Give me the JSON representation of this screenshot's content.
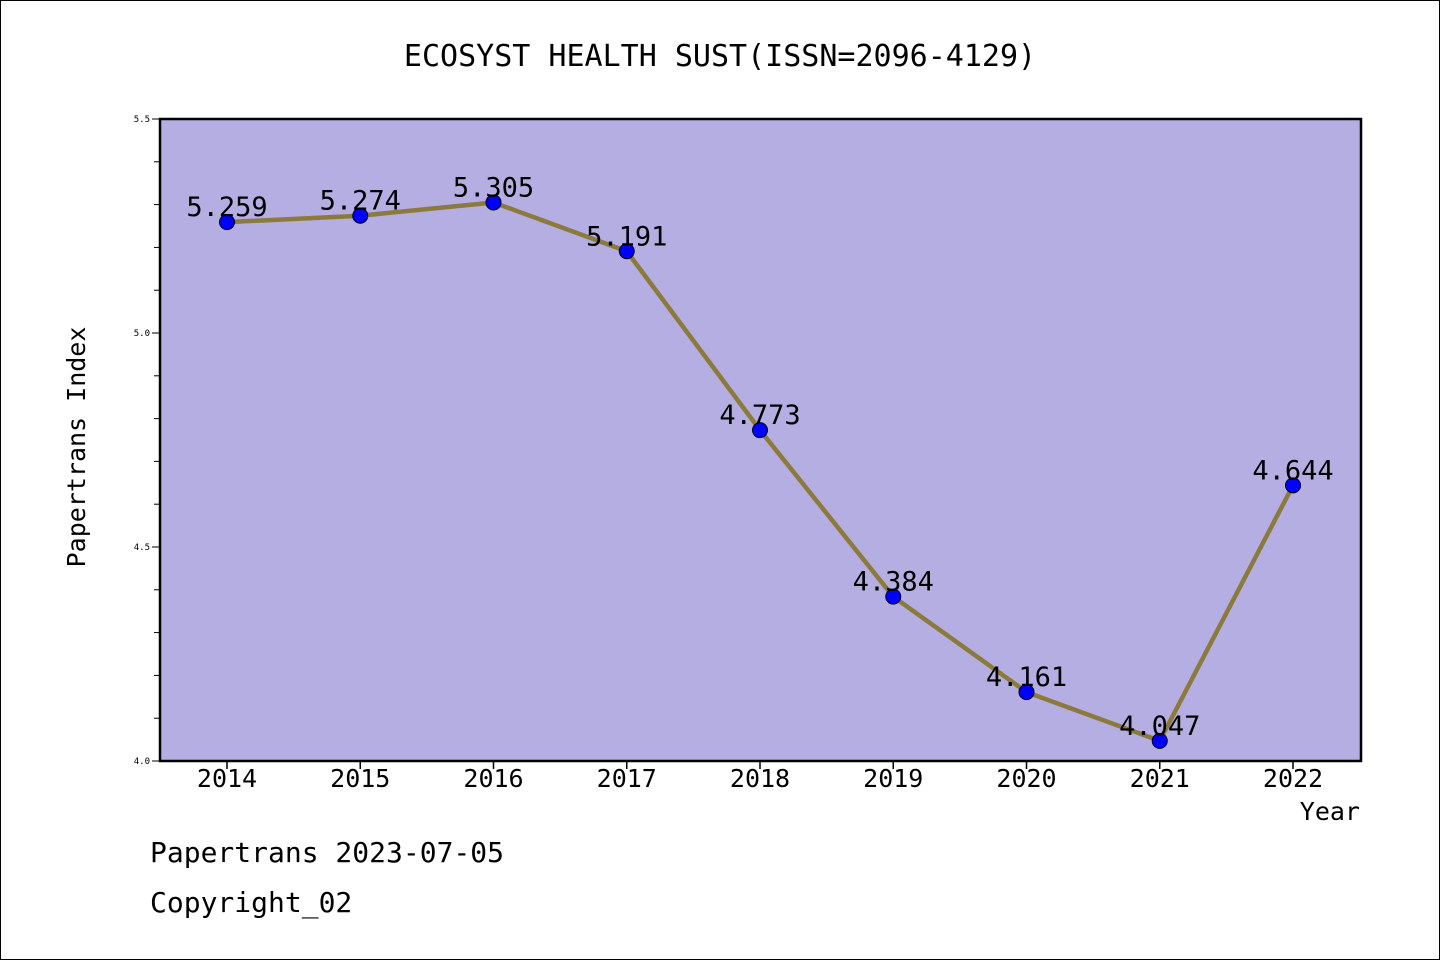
{
  "chart_data": {
    "type": "line",
    "title": "ECOSYST HEALTH SUST(ISSN=2096-4129)",
    "xlabel": "Year",
    "ylabel": "Papertrans Index",
    "categories": [
      "2014",
      "2015",
      "2016",
      "2017",
      "2018",
      "2019",
      "2020",
      "2021",
      "2022"
    ],
    "values": [
      5.259,
      5.274,
      5.305,
      5.191,
      4.773,
      4.384,
      4.161,
      4.047,
      4.644
    ],
    "data_labels": [
      "5.259",
      "5.274",
      "5.305",
      "5.191",
      "4.773",
      "4.384",
      "4.161",
      "4.047",
      "4.644"
    ],
    "ylim": [
      4.0,
      5.5
    ],
    "yticks": [
      "4.0",
      "4.5",
      "5.0",
      "5.5"
    ],
    "grid": false,
    "legend": "none",
    "colors": {
      "plot_bg": "#b4aee2",
      "line": "#8c7a3c",
      "marker": "#0000ff"
    }
  },
  "footer": {
    "source": "Papertrans 2023-07-05",
    "copyright": "Copyright_02"
  }
}
